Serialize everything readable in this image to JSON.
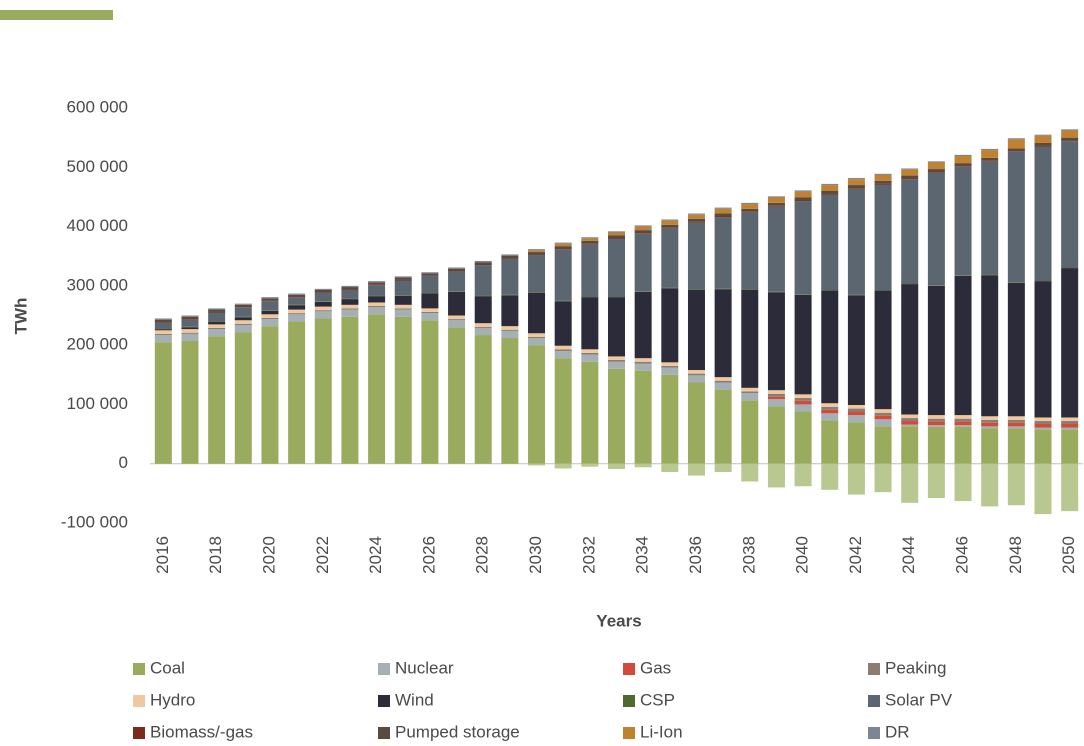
{
  "chart_data": {
    "type": "stacked_bar",
    "ylabel": "TWh",
    "xlabel": "Years",
    "categories": [
      "2016",
      null,
      "2018",
      null,
      "2020",
      null,
      "2022",
      null,
      "2024",
      null,
      "2026",
      null,
      "2028",
      null,
      "2030",
      null,
      "2032",
      null,
      "2034",
      null,
      "2036",
      null,
      "2038",
      null,
      "2040",
      null,
      "2042",
      null,
      "2044",
      null,
      "2046",
      null,
      "2048",
      null,
      "2050"
    ],
    "ylim": [
      -100000,
      600000
    ],
    "yticks": [
      {
        "value": -100000,
        "label": "-100 000"
      },
      0,
      {
        "value": 100000,
        "label": "100 000"
      },
      {
        "value": 200000,
        "label": "200 000"
      },
      {
        "value": 300000,
        "label": "300 000"
      },
      {
        "value": 400000,
        "label": "400 000"
      },
      {
        "value": 500000,
        "label": "500 000"
      },
      {
        "value": 600000,
        "label": "600 000"
      }
    ],
    "series": [
      {
        "name": "Coal",
        "color": "#9aab5e",
        "values": [
          205000,
          207000,
          215000,
          222000,
          232000,
          240000,
          245000,
          248000,
          252000,
          248000,
          242000,
          230000,
          217000,
          212000,
          200000,
          178000,
          172000,
          160000,
          157000,
          150000,
          137000,
          125000,
          107000,
          97000,
          88000,
          73000,
          70000,
          63000,
          63000,
          62000,
          62000,
          60000,
          60000,
          58000,
          58000
        ]
      },
      {
        "name": "Nuclear",
        "color": "#a5b0b5",
        "values": [
          12000,
          12000,
          12000,
          12000,
          12000,
          12000,
          12000,
          12000,
          12000,
          12000,
          12000,
          12000,
          12000,
          12000,
          12000,
          12000,
          12000,
          12000,
          12000,
          12000,
          12000,
          12000,
          12000,
          12000,
          12000,
          12000,
          12000,
          12000,
          3000,
          3000,
          3000,
          3000,
          3000,
          3000,
          3000
        ]
      },
      {
        "name": "Gas",
        "color": "#d24b3a",
        "values": [
          0,
          0,
          0,
          0,
          0,
          0,
          0,
          0,
          0,
          0,
          0,
          0,
          0,
          0,
          0,
          0,
          0,
          0,
          0,
          0,
          0,
          0,
          0,
          4000,
          6000,
          6000,
          6000,
          6000,
          6000,
          6000,
          6000,
          6000,
          6000,
          6000,
          6000
        ]
      },
      {
        "name": "Peaking",
        "color": "#8c7d70",
        "values": [
          2000,
          2000,
          2000,
          2000,
          2000,
          2000,
          2000,
          2000,
          2000,
          2000,
          2000,
          2000,
          2000,
          2000,
          2000,
          3000,
          3000,
          3000,
          3000,
          3000,
          3000,
          3000,
          3000,
          5000,
          5000,
          5000,
          5000,
          5000,
          5000,
          5000,
          5000,
          5000,
          5000,
          5000,
          5000
        ]
      },
      {
        "name": "Hydro",
        "color": "#f0c8a0",
        "values": [
          6000,
          6000,
          6000,
          6000,
          6000,
          6000,
          6000,
          6000,
          6000,
          6000,
          6000,
          6000,
          6000,
          6000,
          6000,
          6000,
          6000,
          6000,
          6000,
          6000,
          6000,
          6000,
          6000,
          6000,
          6000,
          6000,
          6000,
          6000,
          6000,
          6000,
          6000,
          6000,
          6000,
          6000,
          6000
        ]
      },
      {
        "name": "Wind",
        "color": "#2b2b3a",
        "values": [
          2000,
          3000,
          4000,
          5000,
          6000,
          7000,
          8000,
          9000,
          10000,
          15000,
          25000,
          40000,
          45000,
          52000,
          68000,
          75000,
          88000,
          100000,
          112000,
          125000,
          135000,
          148000,
          165000,
          165000,
          168000,
          190000,
          185000,
          200000,
          220000,
          218000,
          235000,
          238000,
          225000,
          230000,
          252000
        ]
      },
      {
        "name": "CSP",
        "color": "#4f6a2c",
        "values": [
          1000,
          1000,
          1000,
          1000,
          1000,
          1000,
          1000,
          1000,
          1000,
          1000,
          1000,
          1000,
          1000,
          1000,
          1000,
          1000,
          1000,
          1000,
          1000,
          1000,
          1000,
          1000,
          1000,
          1000,
          1000,
          1000,
          1000,
          1000,
          1000,
          1000,
          1000,
          1000,
          1000,
          1000,
          1000
        ]
      },
      {
        "name": "Solar PV",
        "color": "#5b6670",
        "values": [
          10000,
          12000,
          15000,
          15000,
          15000,
          12000,
          14000,
          15000,
          18000,
          25000,
          28000,
          33000,
          52000,
          61000,
          63000,
          86000,
          88000,
          97000,
          97000,
          100000,
          113000,
          121000,
          130000,
          144000,
          157000,
          161000,
          179000,
          178000,
          176000,
          190000,
          183000,
          191000,
          220000,
          226000,
          213000
        ]
      },
      {
        "name": "Biomass/-gas",
        "color": "#7b2a1e",
        "values": [
          1000,
          1000,
          1000,
          1000,
          1000,
          1000,
          1000,
          1000,
          1000,
          1000,
          1000,
          1000,
          1000,
          1000,
          1000,
          1000,
          1000,
          1000,
          1000,
          1000,
          1000,
          1000,
          1000,
          1000,
          1000,
          1000,
          1000,
          1000,
          1000,
          1000,
          1000,
          1000,
          1000,
          1000,
          1000
        ]
      },
      {
        "name": "Pumped storage",
        "color": "#5a4a40",
        "values": [
          4000,
          4000,
          4000,
          4000,
          4000,
          4000,
          4000,
          4000,
          4000,
          4000,
          4000,
          4000,
          4000,
          4000,
          4000,
          5000,
          5000,
          5000,
          5000,
          5000,
          5000,
          5000,
          5000,
          5000,
          5000,
          5000,
          5000,
          5000,
          5000,
          5000,
          5000,
          5000,
          5000,
          5000,
          5000
        ]
      },
      {
        "name": "Li-Ion",
        "color": "#c0822e",
        "values": [
          0,
          0,
          0,
          0,
          0,
          0,
          0,
          0,
          0,
          0,
          0,
          0,
          0,
          0,
          3000,
          4000,
          4000,
          5000,
          6000,
          7000,
          7000,
          8000,
          8000,
          9000,
          10000,
          10000,
          10000,
          10000,
          10000,
          11000,
          12000,
          13000,
          15000,
          12000,
          12000
        ]
      },
      {
        "name": "DR",
        "color": "#7d8794",
        "values": [
          2000,
          2000,
          2000,
          2000,
          2000,
          2000,
          2000,
          2000,
          2000,
          2000,
          2000,
          2000,
          2000,
          2000,
          2000,
          2000,
          2000,
          2000,
          2000,
          2000,
          2000,
          2000,
          2000,
          2000,
          2000,
          2000,
          2000,
          2000,
          2000,
          2000,
          2000,
          2000,
          2000,
          2000,
          2000
        ]
      },
      {
        "color": "#b8c890",
        "values": [
          0,
          0,
          0,
          0,
          0,
          0,
          0,
          0,
          0,
          0,
          0,
          0,
          0,
          0,
          -3000,
          -8000,
          -5000,
          -9000,
          -6000,
          -14000,
          -20000,
          -14000,
          -30000,
          -40000,
          -38000,
          -44000,
          -52000,
          -48000,
          -66000,
          -58000,
          -63000,
          -72000,
          -70000,
          -85000,
          -80000
        ]
      }
    ]
  }
}
